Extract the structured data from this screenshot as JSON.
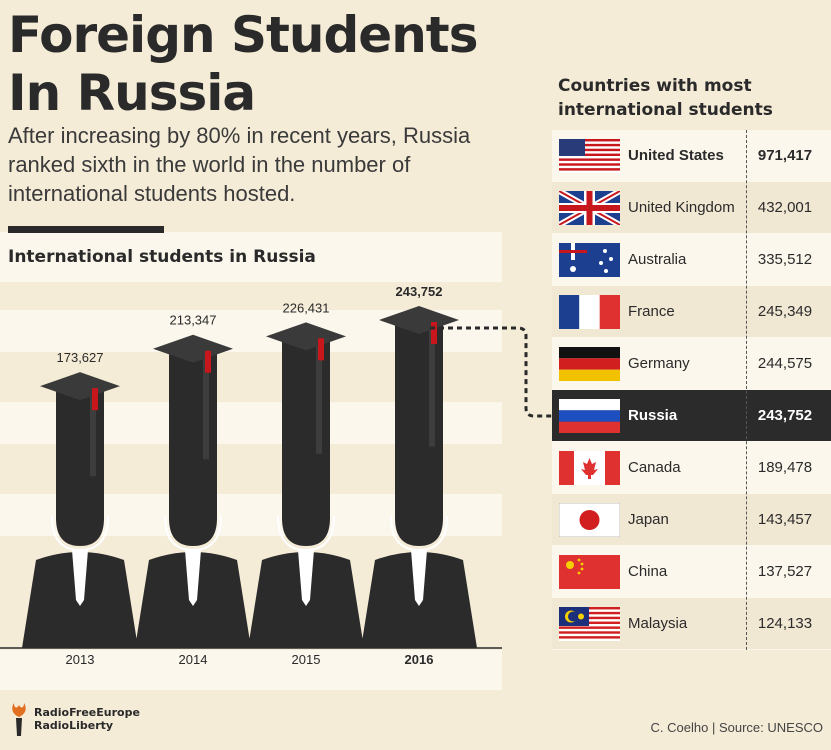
{
  "title_line1": "Foreign Students",
  "title_line2": "In Russia",
  "subtitle": "After increasing by 80% in recent years, Russia ranked sixth in the world in the number of international students hosted.",
  "chart_data": [
    {
      "type": "bar",
      "title": "International students in Russia",
      "categories": [
        "2013",
        "2014",
        "2015",
        "2016"
      ],
      "values": [
        173627,
        213347,
        226431,
        243752
      ],
      "value_labels": [
        "173,627",
        "213,347",
        "226,431",
        "243,752"
      ],
      "highlight": "2016"
    },
    {
      "type": "table",
      "title": "Countries with most international students",
      "rows": [
        {
          "country": "United States",
          "value": "971,417",
          "flag": "us-flag-icon"
        },
        {
          "country": "United Kingdom",
          "value": "432,001",
          "flag": "uk-flag-icon"
        },
        {
          "country": "Australia",
          "value": "335,512",
          "flag": "australia-flag-icon"
        },
        {
          "country": "France",
          "value": "245,349",
          "flag": "france-flag-icon"
        },
        {
          "country": "Germany",
          "value": "244,575",
          "flag": "germany-flag-icon"
        },
        {
          "country": "Russia",
          "value": "243,752",
          "flag": "russia-flag-icon",
          "highlight": true
        },
        {
          "country": "Canada",
          "value": "189,478",
          "flag": "canada-flag-icon"
        },
        {
          "country": "Japan",
          "value": "143,457",
          "flag": "japan-flag-icon"
        },
        {
          "country": "China",
          "value": "137,527",
          "flag": "china-flag-icon"
        },
        {
          "country": "Malaysia",
          "value": "124,133",
          "flag": "malaysia-flag-icon"
        }
      ]
    }
  ],
  "logo_line1": "RadioFreeEurope",
  "logo_line2": "RadioLiberty",
  "credit": "C. Coelho | Source: UNESCO",
  "colors": {
    "background": "#f5ecd8",
    "dark": "#2b2b2b",
    "cap_accent": "#c8161d"
  }
}
